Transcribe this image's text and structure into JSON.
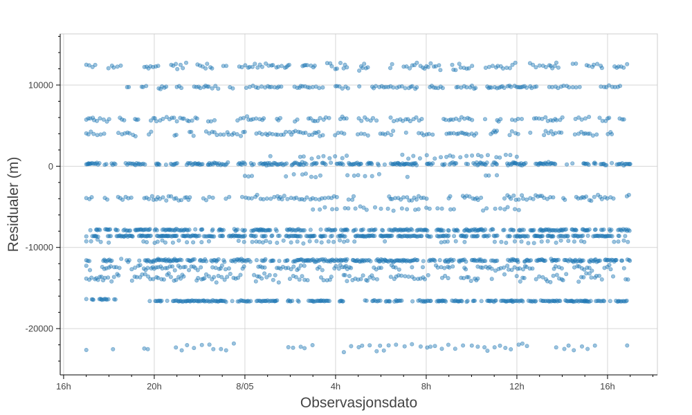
{
  "chart_data": {
    "type": "scatter",
    "title": "",
    "xlabel": "Observasjonsdato",
    "ylabel": "Residualer (m)",
    "grid": true,
    "legend": "none",
    "marker_color": "#1f77b4",
    "marker_opacity": 0.45,
    "x_unit": "hours",
    "xlim": [
      15.85,
      42.2
    ],
    "ylim": [
      -25700,
      16300
    ],
    "x_ticks": [
      {
        "value": 16,
        "label": "16h"
      },
      {
        "value": 20,
        "label": "20h"
      },
      {
        "value": 24,
        "label": "8/05"
      },
      {
        "value": 28,
        "label": "4h"
      },
      {
        "value": 32,
        "label": "8h"
      },
      {
        "value": 36,
        "label": "12h"
      },
      {
        "value": 40,
        "label": "16h"
      }
    ],
    "y_ticks": [
      {
        "value": 10000,
        "label": "10000"
      },
      {
        "value": 0,
        "label": "0"
      },
      {
        "value": -10000,
        "label": "-10000"
      },
      {
        "value": -20000,
        "label": "-20000"
      }
    ],
    "x_range_observed": [
      17.0,
      41.0
    ],
    "bands": [
      {
        "level": 12300,
        "x_start": 17.0,
        "x_end": 41.0,
        "density": "medium",
        "spread": 700
      },
      {
        "level": 9750,
        "x_start": 17.0,
        "x_end": 41.0,
        "density": "medium",
        "spread": 250
      },
      {
        "level": 5800,
        "x_start": 17.0,
        "x_end": 41.0,
        "density": "medium",
        "spread": 400
      },
      {
        "level": 4000,
        "x_start": 17.0,
        "x_end": 41.0,
        "density": "medium",
        "spread": 450
      },
      {
        "level": 300,
        "x_start": 17.0,
        "x_end": 41.0,
        "density": "high",
        "spread": 250
      },
      {
        "level": 1200,
        "x_start": 24.0,
        "x_end": 36.0,
        "density": "low",
        "spread": 500
      },
      {
        "level": -1200,
        "x_start": 24.0,
        "x_end": 36.0,
        "density": "low",
        "spread": 400
      },
      {
        "level": -3900,
        "x_start": 17.0,
        "x_end": 41.0,
        "density": "medium",
        "spread": 500
      },
      {
        "level": -5200,
        "x_start": 27.0,
        "x_end": 37.0,
        "density": "low",
        "spread": 400
      },
      {
        "level": -7850,
        "x_start": 17.0,
        "x_end": 41.0,
        "density": "high",
        "spread": 150
      },
      {
        "level": -8600,
        "x_start": 17.0,
        "x_end": 41.0,
        "density": "high",
        "spread": 100
      },
      {
        "level": -9300,
        "x_start": 17.0,
        "x_end": 41.0,
        "density": "low",
        "spread": 300
      },
      {
        "level": -11600,
        "x_start": 17.0,
        "x_end": 41.0,
        "density": "high",
        "spread": 250
      },
      {
        "level": -12500,
        "x_start": 17.0,
        "x_end": 41.0,
        "density": "medium",
        "spread": 500
      },
      {
        "level": -13700,
        "x_start": 17.0,
        "x_end": 41.0,
        "density": "medium",
        "spread": 800
      },
      {
        "level": -16400,
        "x_start": 17.0,
        "x_end": 18.3,
        "density": "high",
        "spread": 80
      },
      {
        "level": -16600,
        "x_start": 19.8,
        "x_end": 28.5,
        "density": "high",
        "spread": 120
      },
      {
        "level": -16600,
        "x_start": 29.3,
        "x_end": 41.0,
        "density": "high",
        "spread": 120
      },
      {
        "level": -22300,
        "x_start": 17.0,
        "x_end": 41.0,
        "density": "low",
        "spread": 800
      }
    ]
  }
}
